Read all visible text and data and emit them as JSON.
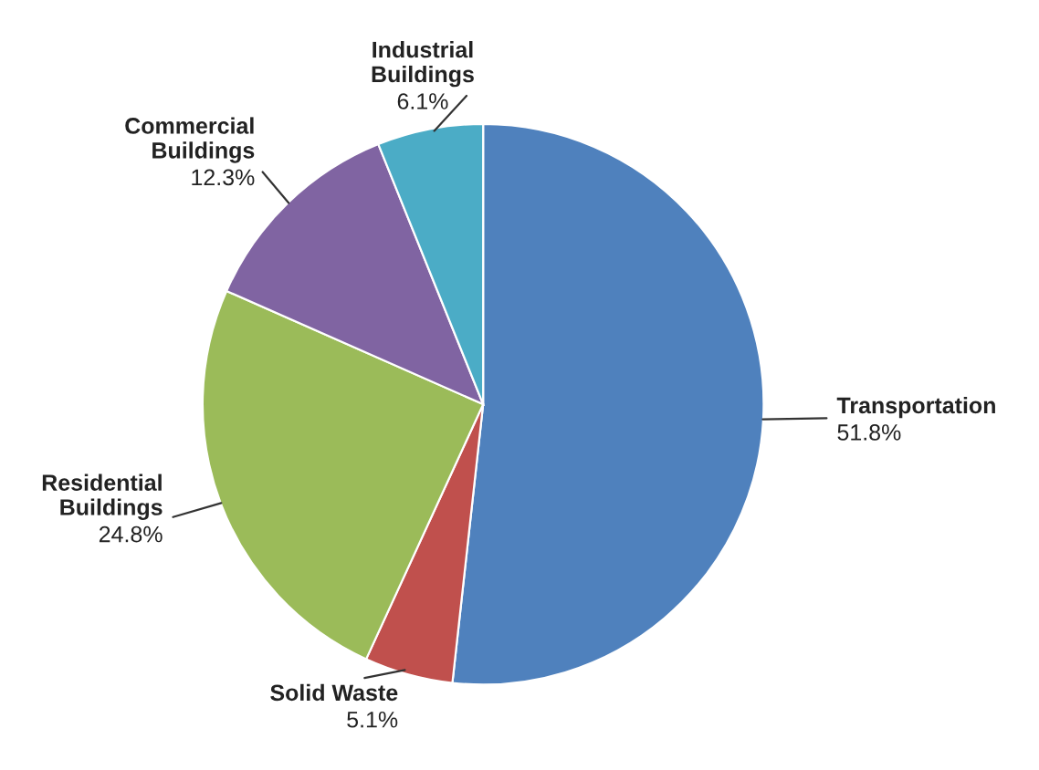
{
  "chart_data": {
    "type": "pie",
    "categories": [
      "Transportation",
      "Solid Waste",
      "Residential Buildings",
      "Commercial Buildings",
      "Industrial Buildings"
    ],
    "values": [
      51.8,
      5.1,
      24.8,
      12.3,
      6.1
    ],
    "value_labels": [
      "51.8%",
      "5.1%",
      "24.8%",
      "12.3%",
      "6.1%"
    ],
    "colors": [
      "#4f81bd",
      "#c0504d",
      "#9bbb59",
      "#8064a2",
      "#4bacc6"
    ],
    "legend": false
  }
}
